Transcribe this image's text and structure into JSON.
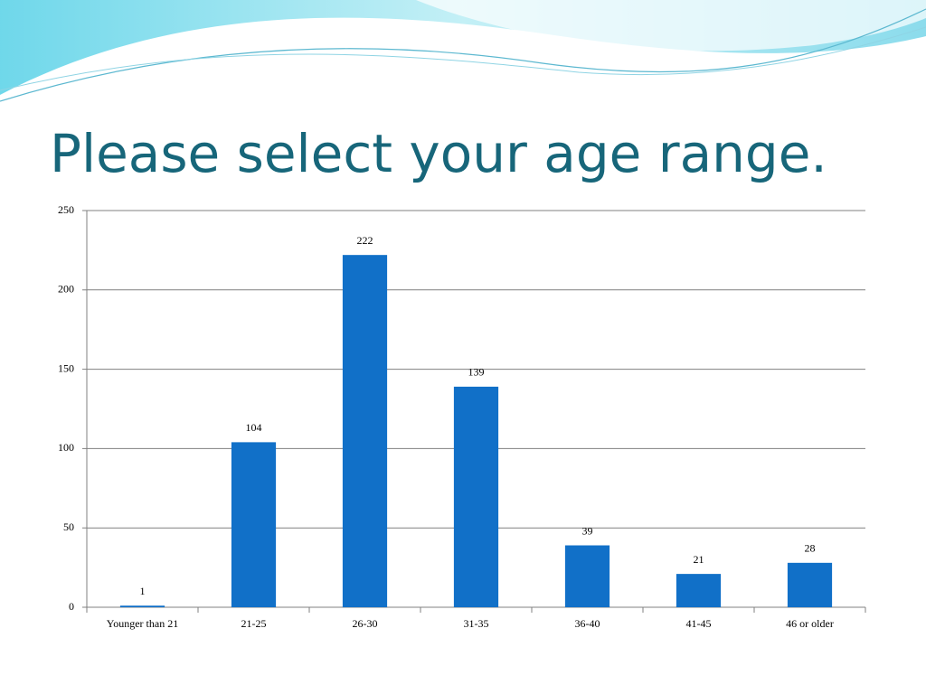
{
  "chart_data": {
    "type": "bar",
    "title": "Please select your age range.",
    "categories": [
      "Younger than 21",
      "21-25",
      "26-30",
      "31-35",
      "36-40",
      "41-45",
      "46 or older"
    ],
    "values": [
      1,
      104,
      222,
      139,
      39,
      21,
      28
    ],
    "color": "#1170c8",
    "ylim": [
      0,
      250
    ],
    "yticks": [
      0,
      50,
      100,
      150,
      200,
      250
    ],
    "grid": true
  }
}
